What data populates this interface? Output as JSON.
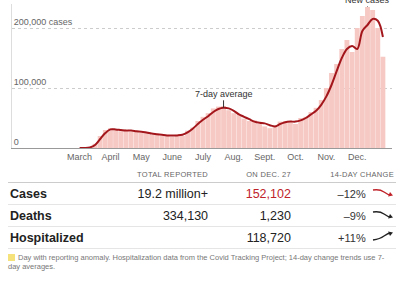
{
  "chart_data": {
    "type": "bar",
    "categories": [
      "March",
      null,
      null,
      null,
      null,
      null,
      "April",
      null,
      null,
      null,
      null,
      null,
      "May",
      null,
      null,
      null,
      null,
      null,
      "June",
      null,
      null,
      null,
      null,
      null,
      "July",
      null,
      null,
      null,
      null,
      null,
      "Aug.",
      null,
      null,
      null,
      null,
      null,
      "Sept.",
      null,
      null,
      null,
      null,
      null,
      "Oct.",
      null,
      null,
      null,
      null,
      null,
      "Nov.",
      null,
      null,
      null,
      null,
      null,
      "Dec.",
      null,
      null,
      null,
      null,
      null
    ],
    "series": [
      {
        "name": "New cases",
        "type": "bar",
        "color": "#f6c9c4",
        "values": [
          0,
          100,
          1500,
          7000,
          20000,
          30000,
          33000,
          30000,
          28000,
          31000,
          27000,
          29000,
          25000,
          27000,
          22000,
          24000,
          20000,
          22000,
          19000,
          22000,
          20000,
          29000,
          34000,
          45000,
          52000,
          58000,
          66000,
          69000,
          70000,
          63000,
          58000,
          55000,
          49000,
          45000,
          46000,
          40000,
          36000,
          33000,
          38000,
          44000,
          45000,
          43000,
          40000,
          50000,
          52000,
          60000,
          67000,
          80000,
          100000,
          125000,
          140000,
          165000,
          180000,
          160000,
          200000,
          220000,
          235000,
          230000,
          200000,
          152102
        ]
      },
      {
        "name": "7-day average",
        "type": "line",
        "color": "#a3171c",
        "values": [
          0,
          0,
          1000,
          5000,
          15000,
          25000,
          31000,
          31000,
          30000,
          29000,
          29000,
          28000,
          27000,
          26000,
          24000,
          23000,
          22000,
          21000,
          21000,
          21000,
          22000,
          26000,
          32000,
          40000,
          47000,
          53000,
          60000,
          65000,
          67000,
          66000,
          62000,
          56000,
          52000,
          48000,
          44000,
          42000,
          41000,
          38000,
          36000,
          40000,
          43000,
          44000,
          44000,
          46000,
          50000,
          56000,
          62000,
          72000,
          86000,
          105000,
          128000,
          150000,
          165000,
          170000,
          165000,
          195000,
          205000,
          215000,
          212000,
          185000
        ]
      }
    ],
    "ylim": [
      0,
      240000
    ],
    "yticks": [
      0,
      {
        "value": 100000,
        "label": "100,000"
      },
      {
        "value": 200000,
        "label": "200,000 cases"
      }
    ],
    "grid": true,
    "annotations": [
      {
        "text": "7-day average",
        "x": 28,
        "y": 67000
      },
      {
        "text": "New cases",
        "x": 56,
        "y": 235000
      }
    ]
  },
  "table": {
    "columns": [
      "TOTAL REPORTED",
      "ON DEC. 27",
      "14-DAY CHANGE"
    ],
    "rows": [
      {
        "label": "Cases",
        "total": "19.2 million+",
        "on_date": "152,102",
        "change": "–12%"
      },
      {
        "label": "Deaths",
        "total": "334,130",
        "on_date": "1,230",
        "change": "–9%"
      },
      {
        "label": "Hospitalized",
        "total": null,
        "on_date": "118,720",
        "change": "+11%"
      }
    ],
    "footnote": "Day with reporting anomaly. Hospitalization data from the Covid Tracking Project; 14-day change trends use 7-day averages."
  }
}
